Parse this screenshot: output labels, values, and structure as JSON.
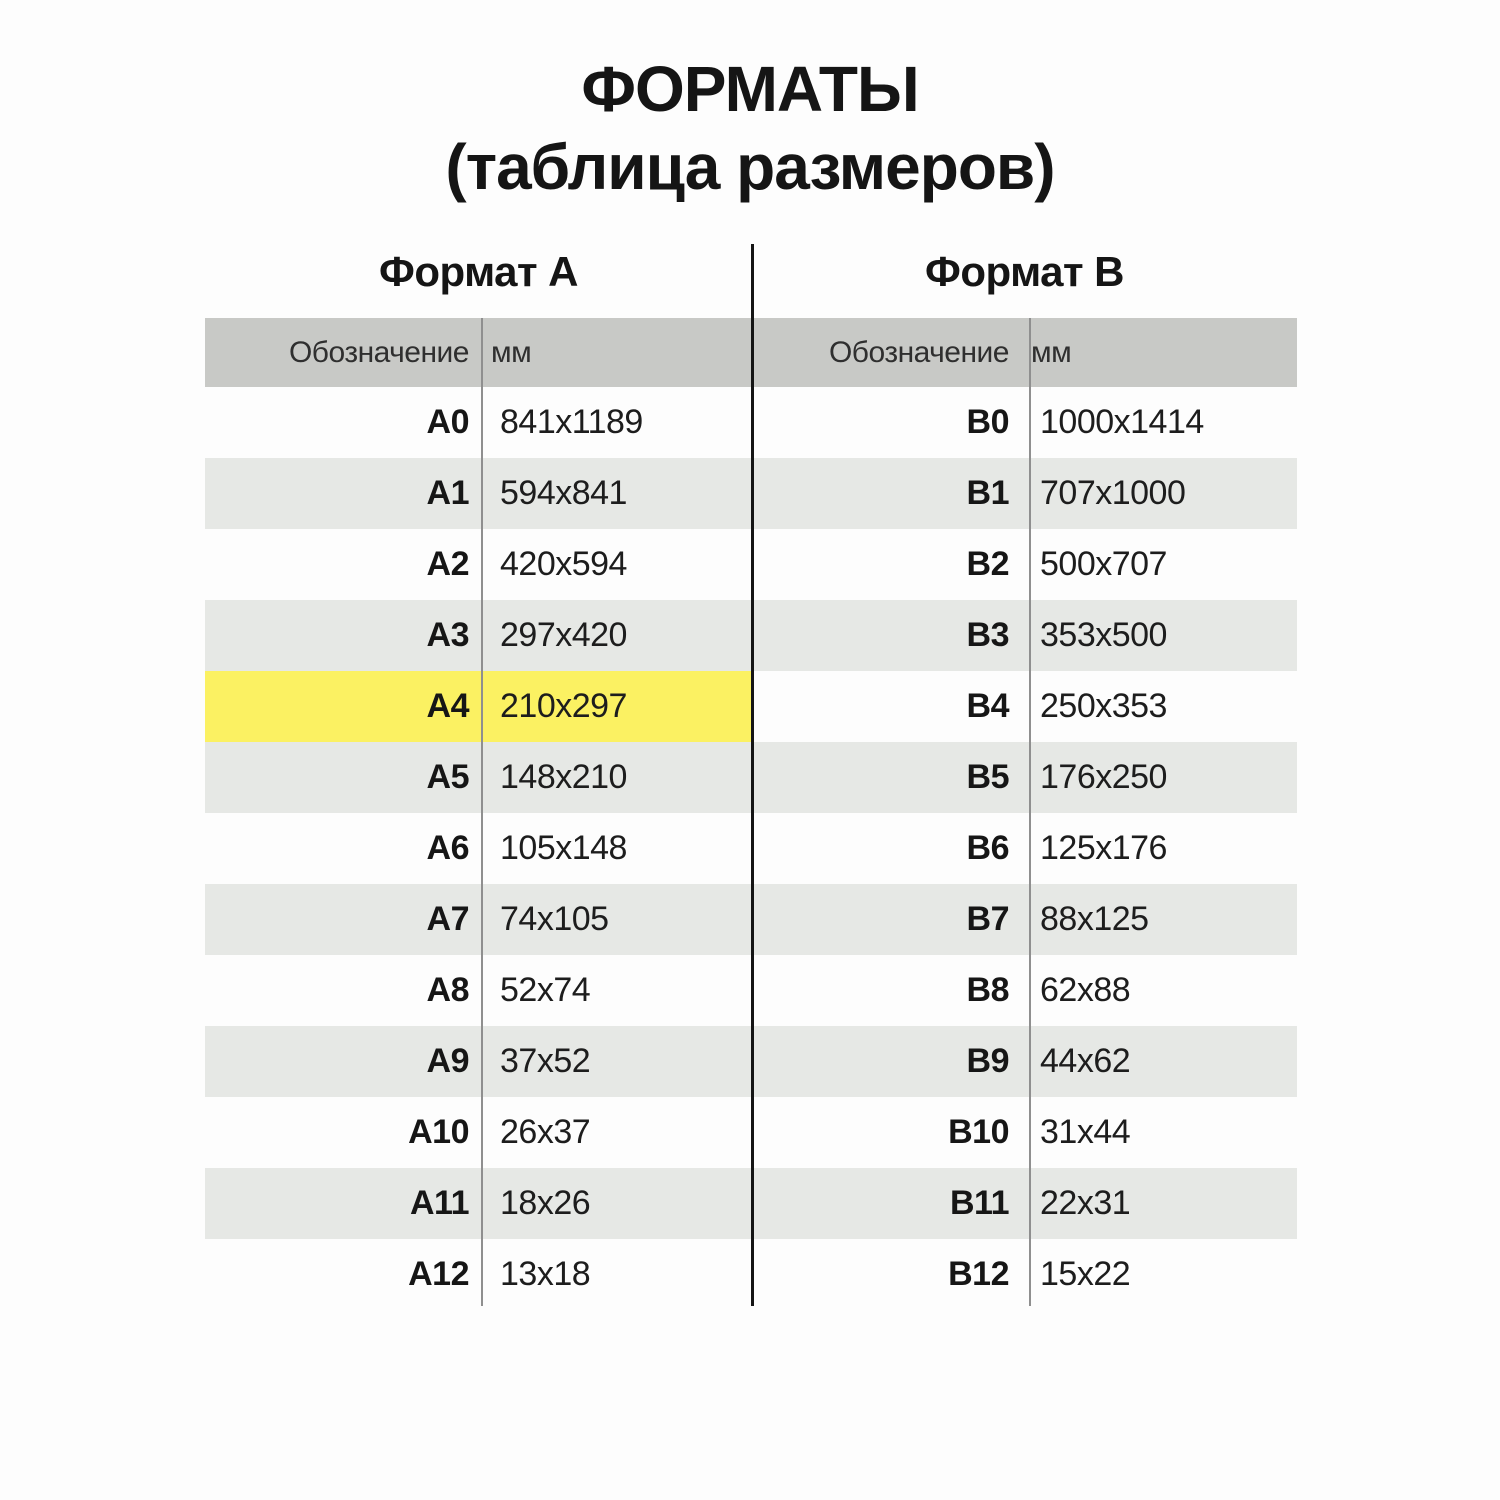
{
  "title": {
    "line1": "ФОРМАТЫ",
    "line2": "(таблица размеров)"
  },
  "colors": {
    "highlight": "#fbf162",
    "header_band": "#c8c9c6",
    "alt_row": "#e6e8e5",
    "divider": "#151515",
    "thin_divider": "#8f8f8f"
  },
  "tables": {
    "a": {
      "heading": "Формат А",
      "col_designation": "Обозначение",
      "col_mm": "мм",
      "rows": [
        {
          "designation": "A0",
          "mm": "841x1189",
          "highlight": false
        },
        {
          "designation": "A1",
          "mm": "594x841",
          "highlight": false
        },
        {
          "designation": "A2",
          "mm": "420x594",
          "highlight": false
        },
        {
          "designation": "A3",
          "mm": "297x420",
          "highlight": false
        },
        {
          "designation": "A4",
          "mm": "210x297",
          "highlight": true
        },
        {
          "designation": "A5",
          "mm": "148x210",
          "highlight": false
        },
        {
          "designation": "A6",
          "mm": "105x148",
          "highlight": false
        },
        {
          "designation": "A7",
          "mm": "74x105",
          "highlight": false
        },
        {
          "designation": "A8",
          "mm": "52x74",
          "highlight": false
        },
        {
          "designation": "A9",
          "mm": "37x52",
          "highlight": false
        },
        {
          "designation": "A10",
          "mm": "26x37",
          "highlight": false
        },
        {
          "designation": "A11",
          "mm": "18x26",
          "highlight": false
        },
        {
          "designation": "A12",
          "mm": "13x18",
          "highlight": false
        }
      ]
    },
    "b": {
      "heading": "Формат B",
      "col_designation": "Обозначение",
      "col_mm": "мм",
      "rows": [
        {
          "designation": "B0",
          "mm": "1000x1414",
          "highlight": false
        },
        {
          "designation": "B1",
          "mm": "707x1000",
          "highlight": false
        },
        {
          "designation": "B2",
          "mm": "500x707",
          "highlight": false
        },
        {
          "designation": "B3",
          "mm": "353x500",
          "highlight": false
        },
        {
          "designation": "B4",
          "mm": "250x353",
          "highlight": false
        },
        {
          "designation": "B5",
          "mm": "176x250",
          "highlight": false
        },
        {
          "designation": "B6",
          "mm": "125x176",
          "highlight": false
        },
        {
          "designation": "B7",
          "mm": "88x125",
          "highlight": false
        },
        {
          "designation": "B8",
          "mm": "62x88",
          "highlight": false
        },
        {
          "designation": "B9",
          "mm": "44x62",
          "highlight": false
        },
        {
          "designation": "B10",
          "mm": "31x44",
          "highlight": false
        },
        {
          "designation": "B11",
          "mm": "22x31",
          "highlight": false
        },
        {
          "designation": "B12",
          "mm": "15x22",
          "highlight": false
        }
      ]
    }
  }
}
